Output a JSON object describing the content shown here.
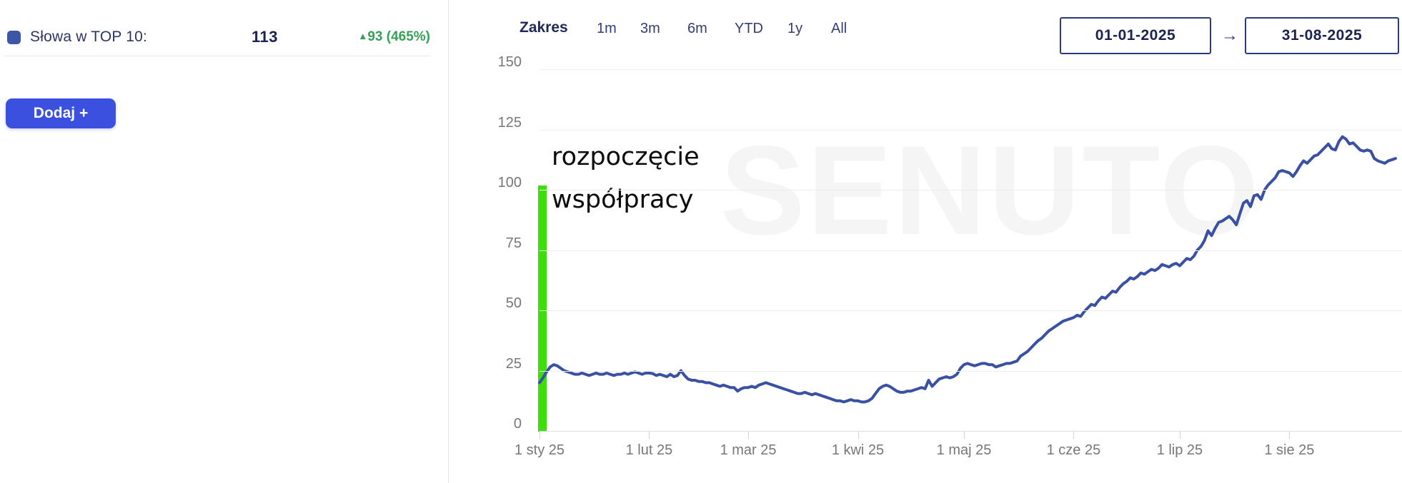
{
  "left_panel": {
    "metric": {
      "label": "Słowa w TOP 10:",
      "value": "113",
      "change_arrow": "▴",
      "change": "93 (465%)"
    },
    "add_button_label": "Dodaj +"
  },
  "toolbar": {
    "range_label": "Zakres",
    "ranges": [
      "1m",
      "3m",
      "6m",
      "YTD",
      "1y",
      "All"
    ],
    "date_from": "01-01-2025",
    "date_to": "31-08-2025",
    "arrow": "→"
  },
  "colors": {
    "series_line": "#3a51a3",
    "series_swatch": "#3e56a6",
    "add_button": "#3c50e0",
    "change_green": "#35a257",
    "annotation_band_green": "#3edd0c",
    "navy_text": "#1b2450",
    "axis_label_gray": "#777777"
  },
  "chart_data": {
    "type": "line",
    "title": "",
    "watermark": "SENUTO",
    "grid": true,
    "legend": "none",
    "ylim": [
      0,
      150
    ],
    "y_ticks": [
      150,
      125,
      100,
      75,
      50,
      25,
      0
    ],
    "x_ticks": [
      "1 sty 25",
      "1 lut 25",
      "1 mar 25",
      "1 kwi 25",
      "1 maj 25",
      "1 cze 25",
      "1 lip 25",
      "1 sie 25"
    ],
    "x_tick_days": [
      0,
      31,
      59,
      90,
      120,
      151,
      181,
      212
    ],
    "x_range_days": 242,
    "annotation": {
      "line1": "rozpoczęcie",
      "line2": "współpracy",
      "band_value_top": 102,
      "band_date": "2025-01-01"
    },
    "series": [
      {
        "name": "Słowa w TOP 10",
        "color": "#3a51a3",
        "start_date": "2025-01-01",
        "interval": "daily",
        "values": [
          20,
          22,
          24.5,
          26.5,
          27.5,
          27,
          26,
          25,
          24.5,
          24,
          23.5,
          23.5,
          24,
          23.5,
          23,
          23.5,
          24,
          23.5,
          23.5,
          24,
          23.5,
          23,
          23.5,
          23.5,
          24,
          23.5,
          24,
          24.5,
          24,
          23.5,
          24,
          24,
          23.8,
          23,
          23.5,
          23,
          22.5,
          23.5,
          22.5,
          23,
          25,
          23,
          21.5,
          21,
          21,
          20.5,
          20.5,
          20,
          20,
          19.5,
          19,
          18.5,
          19,
          18.5,
          18,
          18,
          16.5,
          17.5,
          18,
          18,
          18.5,
          18,
          19,
          19.5,
          20,
          19.5,
          19,
          18.5,
          18,
          17.5,
          17,
          16.5,
          16,
          15.5,
          15.5,
          16,
          15.5,
          15,
          15.5,
          15,
          14.5,
          14,
          13.5,
          13,
          12.5,
          12.5,
          12,
          12.5,
          13,
          12.5,
          12.5,
          12,
          12,
          12.5,
          13.5,
          15.5,
          17.5,
          18.5,
          19,
          18.5,
          17.5,
          16.5,
          16,
          16,
          16.5,
          16.5,
          17,
          17.5,
          18,
          17.5,
          21,
          18.5,
          20,
          21.5,
          22,
          22.5,
          22,
          22.5,
          23.5,
          26,
          27.5,
          28,
          27.5,
          27,
          27.5,
          28,
          28,
          27.5,
          27.5,
          26.5,
          27,
          27.5,
          28,
          28,
          28.5,
          29,
          31,
          32,
          33,
          34.5,
          36,
          37.5,
          38.5,
          40,
          41.5,
          42.5,
          43.5,
          44.5,
          45.5,
          46,
          46.5,
          47,
          48,
          47.5,
          49.5,
          51,
          52.5,
          52,
          54,
          55.5,
          55,
          56.5,
          58,
          57.5,
          59.5,
          61,
          62,
          63.5,
          63,
          64,
          65.5,
          65,
          66,
          67,
          66.5,
          67.5,
          69,
          68.5,
          68,
          69,
          69.5,
          68.5,
          70,
          71.5,
          71,
          72.5,
          75,
          76.5,
          79,
          83,
          81,
          84,
          86.5,
          87,
          88,
          89,
          87.5,
          85.5,
          90,
          94.5,
          95.5,
          93,
          97.5,
          98,
          96,
          100,
          102,
          103.5,
          105,
          107.5,
          108,
          107.5,
          107,
          105.5,
          107.5,
          110,
          112,
          111,
          112.5,
          114,
          114.5,
          116,
          117.5,
          119,
          117,
          116.5,
          120,
          122,
          121,
          119,
          119.5,
          118,
          116.5,
          116,
          116.5,
          116,
          113,
          112,
          111.5,
          111,
          112,
          112.5,
          113
        ]
      }
    ]
  }
}
